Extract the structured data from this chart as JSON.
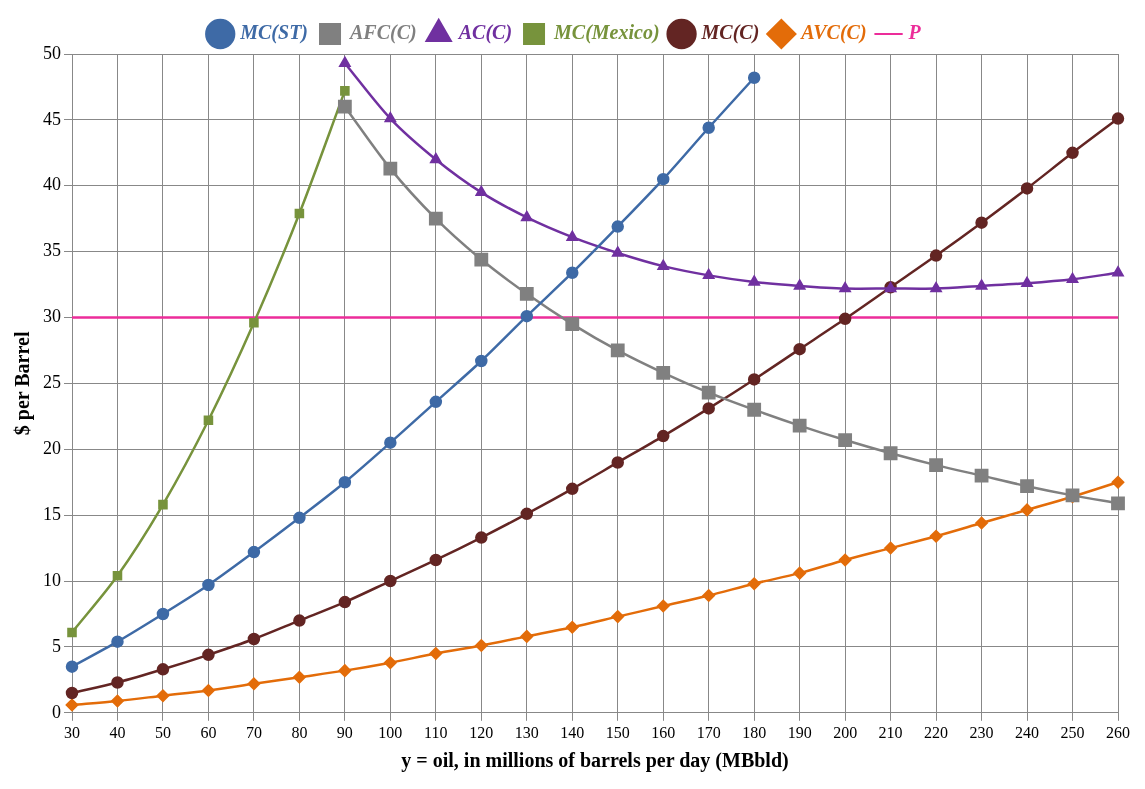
{
  "chart_data": {
    "type": "line",
    "xlabel": "y = oil, in millions of barrels per day (MBbld)",
    "ylabel": "$ per Barrel",
    "categories": [
      "30",
      "40",
      "50",
      "60",
      "70",
      "80",
      "90",
      "100",
      "110",
      "120",
      "130",
      "140",
      "150",
      "160",
      "170",
      "180",
      "190",
      "200",
      "210",
      "220",
      "230",
      "240",
      "250",
      "260"
    ],
    "ylim": [
      0,
      50
    ],
    "yticks": [
      0,
      5,
      10,
      15,
      20,
      25,
      30,
      35,
      40,
      45,
      50
    ],
    "grid": true,
    "legend": "top",
    "line_style": "solid",
    "series": [
      {
        "name": "MC(ST)",
        "color": "#3e6aa6",
        "marker": "circle",
        "values": [
          3.5,
          5.4,
          7.5,
          9.7,
          12.2,
          14.8,
          17.5,
          20.5,
          23.6,
          26.7,
          30.1,
          33.4,
          36.9,
          40.5,
          44.4,
          48.2,
          null,
          null,
          null,
          null,
          null,
          null,
          null,
          null
        ]
      },
      {
        "name": "AFC(C)",
        "color": "#808080",
        "marker": "square",
        "values": [
          null,
          null,
          null,
          null,
          null,
          null,
          46,
          41.3,
          37.5,
          34.4,
          31.8,
          29.5,
          27.5,
          25.8,
          24.3,
          23.0,
          21.8,
          20.7,
          19.7,
          18.8,
          18.0,
          17.2,
          16.5,
          15.9
        ]
      },
      {
        "name": "AC(C)",
        "color": "#7030a0",
        "marker": "triangle",
        "values": [
          null,
          null,
          null,
          null,
          null,
          null,
          49.3,
          45.1,
          42.0,
          39.5,
          37.6,
          36.1,
          34.9,
          33.9,
          33.2,
          32.7,
          32.4,
          32.2,
          32.2,
          32.2,
          32.4,
          32.6,
          32.9,
          33.4
        ]
      },
      {
        "name": "MC(Mexico)",
        "color": "#77933c",
        "marker": "square",
        "values": [
          6.1,
          10.4,
          15.8,
          22.2,
          29.6,
          37.9,
          47.2,
          null,
          null,
          null,
          null,
          null,
          null,
          null,
          null,
          null,
          null,
          null,
          null,
          null,
          null,
          null,
          null,
          null
        ]
      },
      {
        "name": "MC(C)",
        "color": "#632523",
        "marker": "circle",
        "values": [
          1.5,
          2.3,
          3.3,
          4.4,
          5.6,
          7.0,
          8.4,
          10.0,
          11.6,
          13.3,
          15.1,
          17.0,
          19.0,
          21.0,
          23.1,
          25.3,
          27.6,
          29.9,
          32.3,
          34.7,
          37.2,
          39.8,
          42.5,
          45.1
        ]
      },
      {
        "name": "AVC(C)",
        "color": "#e36c09",
        "marker": "diamond",
        "values": [
          0.6,
          0.9,
          1.3,
          1.7,
          2.2,
          2.7,
          3.2,
          3.8,
          4.5,
          5.1,
          5.8,
          6.5,
          7.3,
          8.1,
          8.9,
          9.8,
          10.6,
          11.6,
          12.5,
          13.4,
          14.4,
          15.4,
          16.4,
          17.5
        ]
      },
      {
        "name": "P",
        "color": "#ec2d9a",
        "marker": "none",
        "values": [
          30,
          30,
          30,
          30,
          30,
          30,
          30,
          30,
          30,
          30,
          30,
          30,
          30,
          30,
          30,
          30,
          30,
          30,
          30,
          30,
          30,
          30,
          30,
          30
        ]
      }
    ]
  }
}
